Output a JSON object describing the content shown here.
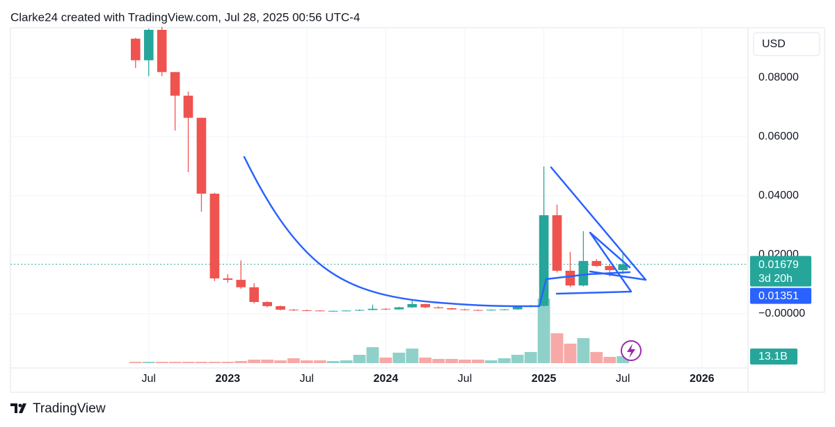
{
  "header": "Clarke24 created with TradingView.com, Jul 28, 2025 00:56 UTC-4",
  "footer": "TradingView",
  "chart_data": {
    "type": "candlestick",
    "currency": "USD",
    "x": [
      "2022-06",
      "2022-07",
      "2022-08",
      "2022-09",
      "2022-10",
      "2022-11",
      "2022-12",
      "2023-01",
      "2023-02",
      "2023-03",
      "2023-04",
      "2023-05",
      "2023-06",
      "2023-07",
      "2023-08",
      "2023-09",
      "2023-10",
      "2023-11",
      "2023-12",
      "2024-01",
      "2024-02",
      "2024-03",
      "2024-04",
      "2024-05",
      "2024-06",
      "2024-07",
      "2024-08",
      "2024-09",
      "2024-10",
      "2024-11",
      "2024-12",
      "2025-01",
      "2025-02",
      "2025-03",
      "2025-04",
      "2025-05",
      "2025-06",
      "2025-07"
    ],
    "open": [
      0.0932,
      0.0859,
      0.0962,
      0.0819,
      0.0739,
      0.0664,
      0.0407,
      0.012,
      0.0115,
      0.009,
      0.004,
      0.0026,
      0.0014,
      0.0012,
      0.0011,
      0.0009,
      0.001,
      0.0011,
      0.0013,
      0.0017,
      0.0015,
      0.0022,
      0.0033,
      0.0022,
      0.0019,
      0.0015,
      0.0013,
      0.0012,
      0.0014,
      0.0015,
      0.0024,
      0.0027,
      0.0334,
      0.0146,
      0.0096,
      0.0179,
      0.0162,
      0.0148
    ],
    "high": [
      0.0935,
      0.0966,
      0.0972,
      0.0819,
      0.0753,
      0.0664,
      0.041,
      0.0134,
      0.0181,
      0.0104,
      0.0043,
      0.0028,
      0.0016,
      0.0014,
      0.0012,
      0.0011,
      0.0012,
      0.0015,
      0.0031,
      0.0019,
      0.0024,
      0.0047,
      0.0034,
      0.0025,
      0.002,
      0.0017,
      0.0014,
      0.0015,
      0.0016,
      0.0026,
      0.003,
      0.0499,
      0.037,
      0.021,
      0.028,
      0.0185,
      0.0168,
      0.0205
    ],
    "low": [
      0.0833,
      0.0805,
      0.0805,
      0.0621,
      0.048,
      0.0346,
      0.0111,
      0.0106,
      0.0085,
      0.0035,
      0.0022,
      0.0012,
      0.001,
      0.0009,
      0.0008,
      0.0008,
      0.0009,
      0.001,
      0.0012,
      0.0013,
      0.0014,
      0.002,
      0.0019,
      0.0018,
      0.0014,
      0.0012,
      0.001,
      0.0011,
      0.0012,
      0.0014,
      0.0022,
      0.0025,
      0.014,
      0.009,
      0.0093,
      0.016,
      0.0127,
      0.0135
    ],
    "close": [
      0.0859,
      0.0962,
      0.0819,
      0.0739,
      0.0664,
      0.0407,
      0.012,
      0.0115,
      0.009,
      0.004,
      0.0026,
      0.0014,
      0.0012,
      0.0011,
      0.0009,
      0.001,
      0.0011,
      0.0013,
      0.0017,
      0.0015,
      0.0022,
      0.0033,
      0.0022,
      0.0019,
      0.0015,
      0.0013,
      0.0012,
      0.0014,
      0.0015,
      0.0024,
      0.0027,
      0.0334,
      0.0146,
      0.0096,
      0.0179,
      0.0162,
      0.0148,
      0.01679
    ],
    "volume": [
      2.6,
      2.6,
      2.6,
      2.6,
      2.6,
      2.6,
      2.6,
      2.6,
      3.9,
      6.6,
      6.6,
      5.2,
      9.2,
      5.2,
      5.2,
      3.9,
      5.2,
      15.7,
      30.1,
      10.5,
      19.7,
      27.5,
      10.5,
      7.9,
      7.9,
      6.6,
      6.6,
      5.2,
      9.2,
      15.7,
      21.0,
      121.8,
      56.3,
      36.7,
      47.2,
      21.0,
      11.8,
      13.1
    ],
    "volume_value_labels": [
      null,
      null,
      null,
      null,
      null,
      null,
      null,
      null,
      null,
      null,
      null,
      null,
      null,
      null,
      null,
      null,
      null,
      null,
      null,
      null,
      null,
      null,
      null,
      null,
      null,
      null,
      null,
      null,
      null,
      null,
      null,
      null,
      null,
      null,
      null,
      null,
      null,
      "13.1B"
    ],
    "up_color": "#26a69a",
    "down_color": "#ef5350",
    "volume_up_color": "#8fd1c8",
    "volume_down_color": "#f7a9a7",
    "line_color": "#2962ff",
    "countdown": "3d 20h",
    "line_value": 0.01351,
    "xlim": [
      "2021-09",
      "2026-04"
    ],
    "xticks": [
      {
        "value": "2022-07",
        "label": "Jul"
      },
      {
        "value": "2023-01",
        "label": "2023"
      },
      {
        "value": "2023-07",
        "label": "Jul"
      },
      {
        "value": "2024-01",
        "label": "2024"
      },
      {
        "value": "2024-07",
        "label": "Jul"
      },
      {
        "value": "2025-01",
        "label": "2025"
      },
      {
        "value": "2025-07",
        "label": "Jul"
      },
      {
        "value": "2026-01",
        "label": "2026"
      }
    ],
    "ylim": [
      -0.0207,
      0.0969
    ],
    "yticks": [
      {
        "value": 0,
        "label": "−0.00000"
      },
      {
        "value": 0.02,
        "label": "0.02000"
      },
      {
        "value": 0.04,
        "label": "0.04000"
      },
      {
        "value": 0.06,
        "label": "0.06000"
      },
      {
        "value": 0.08,
        "label": "0.08000"
      }
    ],
    "grid": true
  }
}
